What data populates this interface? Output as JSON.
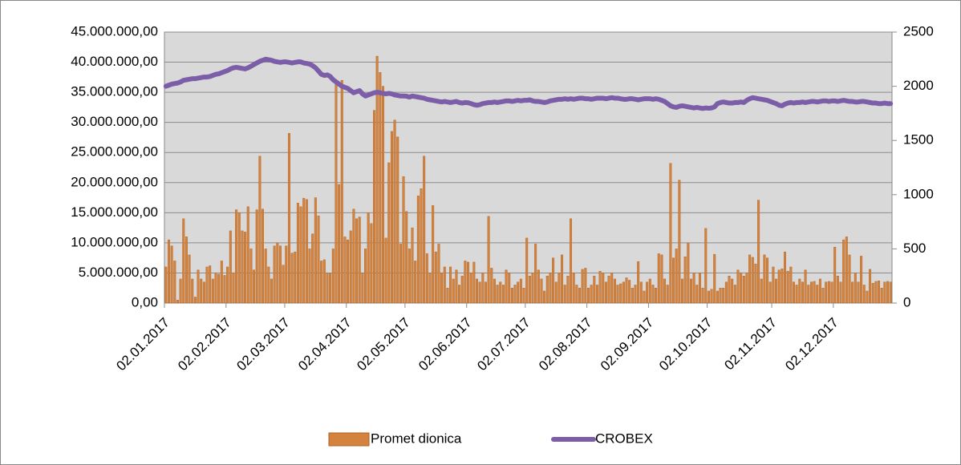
{
  "chart_data": {
    "type": "bar",
    "categories": [
      "02.01.2017",
      null,
      null,
      null,
      null,
      null,
      null,
      null,
      null,
      null,
      null,
      null,
      null,
      null,
      null,
      null,
      null,
      null,
      null,
      null,
      null,
      "02.02.2017",
      null,
      null,
      null,
      null,
      null,
      null,
      null,
      null,
      null,
      null,
      null,
      null,
      null,
      null,
      null,
      null,
      null,
      null,
      null,
      "02.03.2017",
      null,
      null,
      null,
      null,
      null,
      null,
      null,
      null,
      null,
      null,
      null,
      null,
      null,
      null,
      null,
      null,
      null,
      null,
      null,
      null,
      "02.04.2017",
      null,
      null,
      null,
      null,
      null,
      null,
      null,
      null,
      null,
      null,
      null,
      null,
      null,
      null,
      null,
      null,
      null,
      null,
      null,
      "02.05.2017",
      null,
      null,
      null,
      null,
      null,
      null,
      null,
      null,
      null,
      null,
      null,
      null,
      null,
      null,
      null,
      null,
      null,
      null,
      null,
      null,
      "02.06.2017",
      null,
      null,
      null,
      null,
      null,
      null,
      null,
      null,
      null,
      null,
      null,
      null,
      null,
      null,
      null,
      null,
      null,
      null,
      null,
      "02.07.2017",
      null,
      null,
      null,
      null,
      null,
      null,
      null,
      null,
      null,
      null,
      null,
      null,
      null,
      null,
      null,
      null,
      null,
      null,
      null,
      null,
      "02.08.2017",
      null,
      null,
      null,
      null,
      null,
      null,
      null,
      null,
      null,
      null,
      null,
      null,
      null,
      null,
      null,
      null,
      null,
      null,
      null,
      null,
      "02.09.2017",
      null,
      null,
      null,
      null,
      null,
      null,
      null,
      null,
      null,
      null,
      null,
      null,
      null,
      null,
      null,
      null,
      null,
      null,
      null,
      "02.10.2017",
      null,
      null,
      null,
      null,
      null,
      null,
      null,
      null,
      null,
      null,
      null,
      null,
      null,
      null,
      null,
      null,
      null,
      null,
      null,
      null,
      null,
      "02.11.2017",
      null,
      null,
      null,
      null,
      null,
      null,
      null,
      null,
      null,
      null,
      null,
      null,
      null,
      null,
      null,
      null,
      null,
      null,
      null,
      null,
      "02.12.2017",
      null,
      null,
      null,
      null,
      null,
      null,
      null,
      null,
      null,
      null,
      null,
      null,
      null,
      null,
      null,
      null,
      null,
      null,
      null
    ],
    "series": [
      {
        "name": "Promet dionica",
        "type": "bar",
        "color": "#d3833e",
        "values": [
          6000000,
          10500000,
          9500000,
          7000000,
          500000,
          4000000,
          14000000,
          11000000,
          8000000,
          4000000,
          1000000,
          5500000,
          4000000,
          3500000,
          6000000,
          6200000,
          4000000,
          5000000,
          4800000,
          7000000,
          4600000,
          6000000,
          12000000,
          5000000,
          15500000,
          15000000,
          12000000,
          11800000,
          16000000,
          9000000,
          5500000,
          15500000,
          24400000,
          15600000,
          9000000,
          6000000,
          4000000,
          9500000,
          10000000,
          9500000,
          6300000,
          9500000,
          28200000,
          8300000,
          8500000,
          16600000,
          16000000,
          17400000,
          17200000,
          9000000,
          11500000,
          17500000,
          14500000,
          7000000,
          7200000,
          5000000,
          4900000,
          9000000,
          36300000,
          19700000,
          37000000,
          11000000,
          10500000,
          12000000,
          15600000,
          14000000,
          14300000,
          5000000,
          9000000,
          15000000,
          13200000,
          32000000,
          41000000,
          38300000,
          36000000,
          10800000,
          23300000,
          28500000,
          30400000,
          27600000,
          9800000,
          21000000,
          15200000,
          9000000,
          12500000,
          7000000,
          17800000,
          19000000,
          24400000,
          8200000,
          5000000,
          16200000,
          8500000,
          9800000,
          5000000,
          6000000,
          2500000,
          6000000,
          4000000,
          5500000,
          3000000,
          4500000,
          7000000,
          6800000,
          5000000,
          6800000,
          4000000,
          3500000,
          5000000,
          3500000,
          14400000,
          5800000,
          4000000,
          3000000,
          3500000,
          3000000,
          5500000,
          5000000,
          2500000,
          3000000,
          3500000,
          4000000,
          2500000,
          10800000,
          4500000,
          5000000,
          9800000,
          5500000,
          4000000,
          2000000,
          4500000,
          5000000,
          7500000,
          3500000,
          5000000,
          8000000,
          3000000,
          4500000,
          14000000,
          5000000,
          3000000,
          2500000,
          5600000,
          5800000,
          2500000,
          3000000,
          4500000,
          3000000,
          5300000,
          5000000,
          3500000,
          4500000,
          5000000,
          4000000,
          3000000,
          3200000,
          3500000,
          4200000,
          3800000,
          2500000,
          3000000,
          6900000,
          3500000,
          2000000,
          3500000,
          4000000,
          3000000,
          2500000,
          8200000,
          8000000,
          4000000,
          3000000,
          23200000,
          7500000,
          9000000,
          20400000,
          4000000,
          7700000,
          10000000,
          4000000,
          5000000,
          3000000,
          5000000,
          2500000,
          12400000,
          2000000,
          2300000,
          8100000,
          2000000,
          2500000,
          2500000,
          3500000,
          4500000,
          4000000,
          3000000,
          5500000,
          5000000,
          4500000,
          5000000,
          8000000,
          7600000,
          6500000,
          17100000,
          4000000,
          8000000,
          7500000,
          3500000,
          6000000,
          4000000,
          5500000,
          5700000,
          8500000,
          5300000,
          6000000,
          3500000,
          3000000,
          4000000,
          3500000,
          5500000,
          3000000,
          3500000,
          3600000,
          3000000,
          4000000,
          2500000,
          3500000,
          3600000,
          3500000,
          9300000,
          4500000,
          3500000,
          10500000,
          11000000,
          8000000,
          3500000,
          5000000,
          3500000,
          7800000,
          3000000,
          2000000,
          5600000,
          3300000,
          3600000,
          3700000,
          2500000,
          3500000,
          3600000,
          3500000
        ]
      },
      {
        "name": "CROBEX",
        "type": "line",
        "axis": "y2",
        "color": "#7b5ea7",
        "values": [
          2000,
          2010,
          2020,
          2025,
          2030,
          2040,
          2055,
          2060,
          2065,
          2070,
          2070,
          2075,
          2080,
          2085,
          2085,
          2090,
          2100,
          2110,
          2115,
          2125,
          2135,
          2145,
          2160,
          2170,
          2175,
          2170,
          2165,
          2160,
          2170,
          2185,
          2200,
          2215,
          2230,
          2240,
          2250,
          2245,
          2240,
          2230,
          2225,
          2220,
          2225,
          2225,
          2220,
          2215,
          2220,
          2225,
          2225,
          2215,
          2210,
          2205,
          2190,
          2170,
          2140,
          2110,
          2100,
          2105,
          2090,
          2060,
          2040,
          2020,
          2000,
          1990,
          1980,
          1960,
          1940,
          1950,
          1960,
          1930,
          1910,
          1920,
          1930,
          1940,
          1945,
          1940,
          1935,
          1930,
          1935,
          1930,
          1920,
          1915,
          1910,
          1910,
          1908,
          1900,
          1910,
          1905,
          1900,
          1895,
          1890,
          1880,
          1875,
          1870,
          1865,
          1860,
          1855,
          1860,
          1855,
          1850,
          1855,
          1860,
          1850,
          1845,
          1850,
          1848,
          1840,
          1830,
          1825,
          1830,
          1840,
          1845,
          1850,
          1850,
          1855,
          1850,
          1855,
          1860,
          1865,
          1865,
          1860,
          1865,
          1870,
          1865,
          1870,
          1870,
          1875,
          1865,
          1860,
          1860,
          1855,
          1850,
          1855,
          1865,
          1870,
          1875,
          1880,
          1880,
          1885,
          1880,
          1885,
          1880,
          1885,
          1890,
          1890,
          1885,
          1885,
          1880,
          1885,
          1890,
          1890,
          1890,
          1885,
          1890,
          1895,
          1890,
          1890,
          1885,
          1880,
          1880,
          1885,
          1885,
          1880,
          1875,
          1880,
          1885,
          1885,
          1885,
          1880,
          1885,
          1880,
          1870,
          1860,
          1840,
          1820,
          1810,
          1805,
          1815,
          1820,
          1815,
          1810,
          1805,
          1800,
          1805,
          1800,
          1795,
          1800,
          1797,
          1800,
          1810,
          1840,
          1850,
          1855,
          1850,
          1845,
          1845,
          1850,
          1850,
          1855,
          1850,
          1870,
          1885,
          1895,
          1890,
          1885,
          1880,
          1875,
          1870,
          1860,
          1850,
          1840,
          1825,
          1820,
          1835,
          1845,
          1850,
          1845,
          1850,
          1850,
          1855,
          1850,
          1855,
          1860,
          1860,
          1855,
          1860,
          1865,
          1865,
          1860,
          1865,
          1865,
          1860,
          1865,
          1870,
          1865,
          1860,
          1860,
          1855,
          1855,
          1860,
          1860,
          1855,
          1850,
          1845,
          1845,
          1840,
          1840,
          1845,
          1840,
          1840
        ]
      }
    ],
    "ylim": [
      0,
      45000000
    ],
    "yticks": [
      {
        "value": 0,
        "label": "0,00"
      },
      {
        "value": 5000000,
        "label": "5.000.000,00"
      },
      {
        "value": 10000000,
        "label": "10.000.000,00"
      },
      {
        "value": 15000000,
        "label": "15.000.000,00"
      },
      {
        "value": 20000000,
        "label": "20.000.000,00"
      },
      {
        "value": 25000000,
        "label": "25.000.000,00"
      },
      {
        "value": 30000000,
        "label": "30.000.000,00"
      },
      {
        "value": 35000000,
        "label": "35.000.000,00"
      },
      {
        "value": 40000000,
        "label": "40.000.000,00"
      },
      {
        "value": 45000000,
        "label": "45.000.000,00"
      }
    ],
    "y2lim": [
      0,
      2500
    ],
    "y2ticks": [
      0,
      500,
      1000,
      1500,
      2000,
      2500
    ],
    "grid": true,
    "legend": "bottom"
  }
}
